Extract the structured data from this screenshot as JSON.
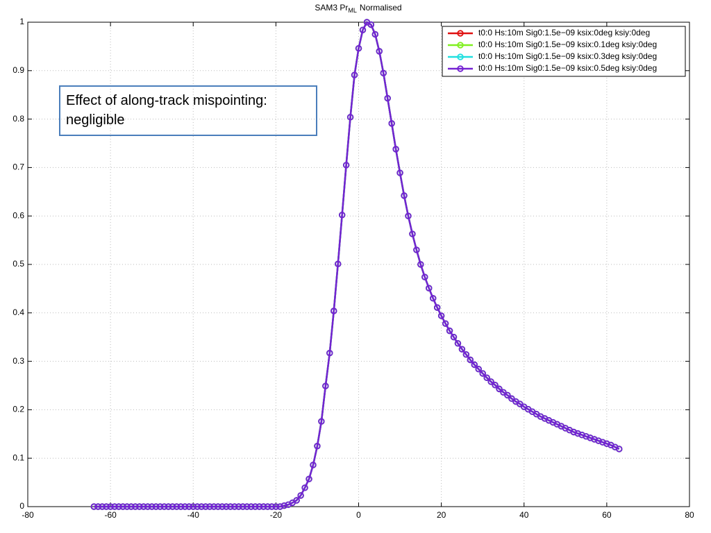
{
  "chart_data": {
    "type": "line",
    "title": {
      "main": "SAM3 Pr",
      "sub": "ML",
      "end": "Normalised"
    },
    "annotation": "Effect of along-track mispointing: negligible",
    "x": [
      -64,
      -63,
      -62,
      -61,
      -60,
      -59,
      -58,
      -57,
      -56,
      -55,
      -54,
      -53,
      -52,
      -51,
      -50,
      -49,
      -48,
      -47,
      -46,
      -45,
      -44,
      -43,
      -42,
      -41,
      -40,
      -39,
      -38,
      -37,
      -36,
      -35,
      -34,
      -33,
      -32,
      -31,
      -30,
      -29,
      -28,
      -27,
      -26,
      -25,
      -24,
      -23,
      -22,
      -21,
      -20,
      -19,
      -18,
      -17,
      -16,
      -15,
      -14,
      -13,
      -12,
      -11,
      -10,
      -9,
      -8,
      -7,
      -6,
      -5,
      -4,
      -3,
      -2,
      -1,
      0,
      1,
      2,
      3,
      4,
      5,
      6,
      7,
      8,
      9,
      10,
      11,
      12,
      13,
      14,
      15,
      16,
      17,
      18,
      19,
      20,
      21,
      22,
      23,
      24,
      25,
      26,
      27,
      28,
      29,
      30,
      31,
      32,
      33,
      34,
      35,
      36,
      37,
      38,
      39,
      40,
      41,
      42,
      43,
      44,
      45,
      46,
      47,
      48,
      49,
      50,
      51,
      52,
      53,
      54,
      55,
      56,
      57,
      58,
      59,
      60,
      61,
      62,
      63
    ],
    "series": [
      {
        "name": "t0:0 Hs:10m Sig0:1.5e−09 ksix:0deg ksiy:0deg",
        "color": "#e01010",
        "values": [
          0,
          0,
          0,
          0,
          0,
          0,
          0,
          0,
          0,
          0,
          0,
          0,
          0,
          0,
          0,
          0,
          0,
          0,
          0,
          0,
          0,
          0,
          0,
          0,
          0,
          0,
          0,
          0,
          0,
          0,
          0,
          0,
          0,
          0,
          0,
          0,
          0,
          0,
          0,
          0,
          0,
          0,
          0,
          0,
          0,
          0,
          0.002,
          0.004,
          0.008,
          0.013,
          0.023,
          0.039,
          0.057,
          0.086,
          0.125,
          0.176,
          0.249,
          0.317,
          0.404,
          0.501,
          0.602,
          0.705,
          0.804,
          0.891,
          0.946,
          0.984,
          1.0,
          0.995,
          0.975,
          0.94,
          0.895,
          0.843,
          0.791,
          0.738,
          0.689,
          0.642,
          0.6,
          0.563,
          0.53,
          0.5,
          0.474,
          0.451,
          0.43,
          0.411,
          0.394,
          0.378,
          0.363,
          0.35,
          0.337,
          0.325,
          0.314,
          0.303,
          0.293,
          0.284,
          0.275,
          0.266,
          0.258,
          0.251,
          0.243,
          0.236,
          0.23,
          0.223,
          0.217,
          0.212,
          0.206,
          0.201,
          0.196,
          0.191,
          0.186,
          0.182,
          0.178,
          0.174,
          0.17,
          0.166,
          0.162,
          0.158,
          0.154,
          0.151,
          0.148,
          0.145,
          0.142,
          0.139,
          0.136,
          0.133,
          0.13,
          0.127,
          0.123,
          0.119
        ]
      },
      {
        "name": "t0:0 Hs:10m Sig0:1.5e−09 ksix:0.1deg ksiy:0deg",
        "color": "#80f020",
        "values": [
          0,
          0,
          0,
          0,
          0,
          0,
          0,
          0,
          0,
          0,
          0,
          0,
          0,
          0,
          0,
          0,
          0,
          0,
          0,
          0,
          0,
          0,
          0,
          0,
          0,
          0,
          0,
          0,
          0,
          0,
          0,
          0,
          0,
          0,
          0,
          0,
          0,
          0,
          0,
          0,
          0,
          0,
          0,
          0,
          0,
          0,
          0.002,
          0.004,
          0.008,
          0.013,
          0.023,
          0.039,
          0.057,
          0.086,
          0.125,
          0.176,
          0.249,
          0.317,
          0.404,
          0.501,
          0.602,
          0.705,
          0.804,
          0.891,
          0.946,
          0.984,
          1.0,
          0.995,
          0.975,
          0.94,
          0.895,
          0.843,
          0.791,
          0.738,
          0.689,
          0.642,
          0.6,
          0.563,
          0.53,
          0.5,
          0.474,
          0.451,
          0.43,
          0.411,
          0.394,
          0.378,
          0.363,
          0.35,
          0.337,
          0.325,
          0.314,
          0.303,
          0.293,
          0.284,
          0.275,
          0.266,
          0.258,
          0.251,
          0.243,
          0.236,
          0.23,
          0.223,
          0.217,
          0.212,
          0.206,
          0.201,
          0.196,
          0.191,
          0.186,
          0.182,
          0.178,
          0.174,
          0.17,
          0.166,
          0.162,
          0.158,
          0.154,
          0.151,
          0.148,
          0.145,
          0.142,
          0.139,
          0.136,
          0.133,
          0.13,
          0.127,
          0.123,
          0.119
        ]
      },
      {
        "name": "t0:0 Hs:10m Sig0:1.5e−09 ksix:0.3deg ksiy:0deg",
        "color": "#20e0e0",
        "values": [
          0,
          0,
          0,
          0,
          0,
          0,
          0,
          0,
          0,
          0,
          0,
          0,
          0,
          0,
          0,
          0,
          0,
          0,
          0,
          0,
          0,
          0,
          0,
          0,
          0,
          0,
          0,
          0,
          0,
          0,
          0,
          0,
          0,
          0,
          0,
          0,
          0,
          0,
          0,
          0,
          0,
          0,
          0,
          0,
          0,
          0,
          0.002,
          0.004,
          0.008,
          0.013,
          0.023,
          0.039,
          0.057,
          0.086,
          0.125,
          0.176,
          0.249,
          0.317,
          0.404,
          0.501,
          0.602,
          0.705,
          0.804,
          0.891,
          0.946,
          0.984,
          1.0,
          0.995,
          0.975,
          0.94,
          0.895,
          0.843,
          0.791,
          0.738,
          0.689,
          0.642,
          0.6,
          0.563,
          0.53,
          0.5,
          0.474,
          0.451,
          0.43,
          0.411,
          0.394,
          0.378,
          0.363,
          0.35,
          0.337,
          0.325,
          0.314,
          0.303,
          0.293,
          0.284,
          0.275,
          0.266,
          0.258,
          0.251,
          0.243,
          0.236,
          0.23,
          0.223,
          0.217,
          0.212,
          0.206,
          0.201,
          0.196,
          0.191,
          0.186,
          0.182,
          0.178,
          0.174,
          0.17,
          0.166,
          0.162,
          0.158,
          0.154,
          0.151,
          0.148,
          0.145,
          0.142,
          0.139,
          0.136,
          0.133,
          0.13,
          0.127,
          0.123,
          0.119
        ]
      },
      {
        "name": "t0:0 Hs:10m Sig0:1.5e−09 ksix:0.5deg ksiy:0deg",
        "color": "#7422d2",
        "values": [
          0,
          0,
          0,
          0,
          0,
          0,
          0,
          0,
          0,
          0,
          0,
          0,
          0,
          0,
          0,
          0,
          0,
          0,
          0,
          0,
          0,
          0,
          0,
          0,
          0,
          0,
          0,
          0,
          0,
          0,
          0,
          0,
          0,
          0,
          0,
          0,
          0,
          0,
          0,
          0,
          0,
          0,
          0,
          0,
          0,
          0,
          0.002,
          0.004,
          0.008,
          0.013,
          0.023,
          0.039,
          0.057,
          0.086,
          0.125,
          0.176,
          0.249,
          0.317,
          0.404,
          0.501,
          0.602,
          0.705,
          0.804,
          0.891,
          0.946,
          0.984,
          1.0,
          0.995,
          0.975,
          0.94,
          0.895,
          0.843,
          0.791,
          0.738,
          0.689,
          0.642,
          0.6,
          0.563,
          0.53,
          0.5,
          0.474,
          0.451,
          0.43,
          0.411,
          0.394,
          0.378,
          0.363,
          0.35,
          0.337,
          0.325,
          0.314,
          0.303,
          0.293,
          0.284,
          0.275,
          0.266,
          0.258,
          0.251,
          0.243,
          0.236,
          0.23,
          0.223,
          0.217,
          0.212,
          0.206,
          0.201,
          0.196,
          0.191,
          0.186,
          0.182,
          0.178,
          0.174,
          0.17,
          0.166,
          0.162,
          0.158,
          0.154,
          0.151,
          0.148,
          0.145,
          0.142,
          0.139,
          0.136,
          0.133,
          0.13,
          0.127,
          0.123,
          0.119
        ]
      }
    ],
    "xlim": [
      -80,
      80
    ],
    "xticks": [
      -80,
      -60,
      -40,
      -20,
      0,
      20,
      40,
      60,
      80
    ],
    "ylim": [
      0,
      1
    ],
    "yticks": [
      0,
      0.1,
      0.2,
      0.3,
      0.4,
      0.5,
      0.6,
      0.7,
      0.8,
      0.9,
      1
    ],
    "grid": true,
    "legend": "upper right"
  }
}
